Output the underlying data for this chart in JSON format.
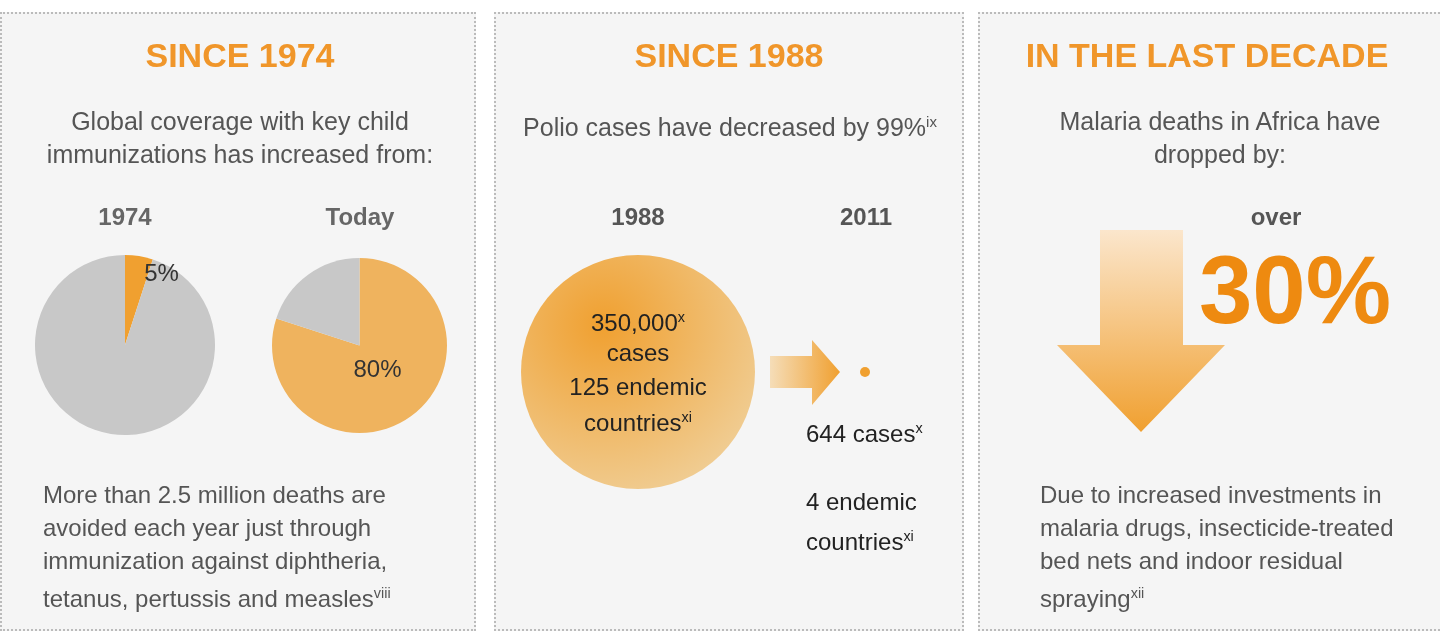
{
  "chart_data": [
    {
      "type": "other",
      "title": "SINCE 1974",
      "subtitle": "Global coverage with key child immunizations has increased from:",
      "annotations": [
        "More than 2.5 million deaths are avoided each year just through immunization against diphtheria, tetanus, pertussis and measles$^{viii}$"
      ]
    },
    {
      "type": "pie",
      "title": "1974",
      "categories": [
        null,
        null
      ],
      "values": [
        5,
        95
      ],
      "colors": [
        "#f0a030",
        "#c8c8c8"
      ],
      "value_labels": [
        "5%",
        null
      ]
    },
    {
      "type": "pie",
      "title": "Today",
      "categories": [
        null,
        null
      ],
      "values": [
        80,
        20
      ],
      "colors": [
        "#efb35e",
        "#c8c8c8"
      ],
      "value_labels": [
        "80%",
        null
      ]
    },
    {
      "type": "other",
      "title": "SINCE 1988",
      "subtitle": "Polio cases have decreased by 99%$^{ix}$",
      "annotations": [
        "1988",
        "2011",
        "350,000$^{x}$ cases",
        "125 endemic countries$^{xi}$",
        "644 cases$^{x}$",
        "4 endemic countries$^{xi}$"
      ]
    },
    {
      "type": "other",
      "title": "IN THE LAST DECADE",
      "subtitle": "Malaria deaths in Africa have dropped by:",
      "annotations": [
        "over",
        "30%",
        "Due to increased investments in malaria drugs, insecticide-treated bed nets and indoor residual spraying$^{xii}$"
      ]
    }
  ]
}
